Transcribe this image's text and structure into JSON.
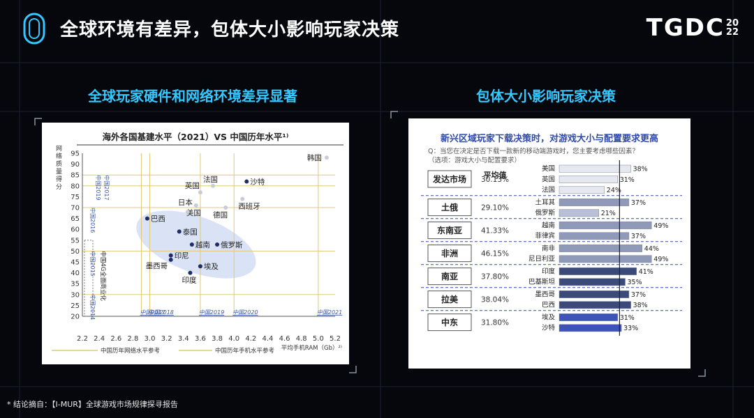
{
  "slide": {
    "title": "全球环境有差异，包体大小影响玩家决策",
    "brand": "TGDC",
    "brand_year_top": "20",
    "brand_year_bottom": "22",
    "footnote": "* 结论摘自：【I-MUR】全球游戏市场规律探寻报告"
  },
  "sections": {
    "left_heading": "全球玩家硬件和网络环境差异显著",
    "right_heading": "包体大小影响玩家决策"
  },
  "colors": {
    "background": "#05070d",
    "accent_cyan": "#33c8ff",
    "grid_gold": "#e0c878",
    "bar_light": "#e6e8ef",
    "bar_mid": "#8f99b8",
    "bar_dark": "#3b4a78",
    "bar_blue": "#3c53b8"
  },
  "chart_data": [
    {
      "type": "scatter",
      "title": "海外各国基建水平（2021）VS 中国历年水平¹⁾",
      "ylabel": "网络质量得分",
      "xlabel": "平均手机RAM（Gb）²⁾",
      "xlim": [
        2.2,
        5.2
      ],
      "ylim": [
        20,
        95
      ],
      "x_ticks": [
        "2.2",
        "2.4",
        "2.6",
        "2.8",
        "3.0",
        "3.2",
        "3.4",
        "3.6",
        "3.8",
        "4.0",
        "4.2",
        "4.4",
        "4.6",
        "4.8",
        "5.0",
        "5.2"
      ],
      "y_ticks": [
        "20",
        "25",
        "30",
        "35",
        "40",
        "45",
        "50",
        "55",
        "60",
        "65",
        "70",
        "75",
        "80",
        "85",
        "90",
        "95"
      ],
      "points": [
        {
          "label": "韩国",
          "x": 5.1,
          "y": 93
        },
        {
          "label": "沙特",
          "x": 4.15,
          "y": 82
        },
        {
          "label": "法国",
          "x": 3.75,
          "y": 80
        },
        {
          "label": "英国",
          "x": 3.6,
          "y": 77
        },
        {
          "label": "西班牙",
          "x": 4.1,
          "y": 74
        },
        {
          "label": "美国",
          "x": 3.55,
          "y": 71
        },
        {
          "label": "德国",
          "x": 3.9,
          "y": 70
        },
        {
          "label": "日本",
          "x": 3.45,
          "y": 68
        },
        {
          "label": "巴西",
          "x": 2.97,
          "y": 65
        },
        {
          "label": "泰国",
          "x": 3.35,
          "y": 59
        },
        {
          "label": "越南",
          "x": 3.5,
          "y": 53
        },
        {
          "label": "俄罗斯",
          "x": 3.8,
          "y": 53
        },
        {
          "label": "印尼",
          "x": 3.25,
          "y": 48
        },
        {
          "label": "墨西哥",
          "x": 3.25,
          "y": 46
        },
        {
          "label": "埃及",
          "x": 3.6,
          "y": 43
        },
        {
          "label": "印度",
          "x": 3.48,
          "y": 40
        }
      ],
      "vertical_refs": [
        {
          "x": 2.9,
          "label": "中国2017"
        },
        {
          "x": 3.0,
          "label": "中国2018"
        },
        {
          "x": 3.6,
          "label": "中国2019"
        },
        {
          "x": 4.0,
          "label": "中国2020"
        },
        {
          "x": 5.0,
          "label": "中国2021"
        }
      ],
      "horizontal_refs": [
        {
          "y": 85,
          "label": "中国2019"
        },
        {
          "y": 80,
          "label": "中国2017"
        },
        {
          "y": 70,
          "label": "中国2016"
        },
        {
          "y": 50,
          "label": "中国2015"
        },
        {
          "y": 30,
          "label": "中国2014"
        }
      ],
      "annotation": "中国4G全面商业化",
      "legend": [
        "中国历年网络水平参考",
        "中国历年手机水平参考"
      ],
      "legend_position": "bottom"
    },
    {
      "type": "bar",
      "title": "新兴区域玩家下载决策时，对游戏大小与配置要求更高",
      "question_line1": "Q：当您在决定是否下载一款新的移动端游戏时，您主要考虑哪些因素？",
      "question_line2": "（选项：游戏大小与配置要求）",
      "avg_header": "平均值",
      "xlim": [
        0,
        60
      ],
      "reference_value": 32,
      "groups": [
        {
          "region": "发达市场",
          "avg": "30.13%",
          "items": [
            {
              "country": "美国",
              "value": 38,
              "label": "38%"
            },
            {
              "country": "英国",
              "value": 31,
              "label": "31%"
            },
            {
              "country": "法国",
              "value": 24,
              "label": "24%"
            }
          ]
        },
        {
          "region": "土俄",
          "avg": "29.10%",
          "items": [
            {
              "country": "土耳其",
              "value": 37,
              "label": "37%"
            },
            {
              "country": "俄罗斯",
              "value": 21,
              "label": "21%"
            }
          ]
        },
        {
          "region": "东南亚",
          "avg": "41.33%",
          "items": [
            {
              "country": "越南",
              "value": 49,
              "label": "49%"
            },
            {
              "country": "菲律宾",
              "value": 37,
              "label": "37%"
            }
          ]
        },
        {
          "region": "非洲",
          "avg": "46.15%",
          "items": [
            {
              "country": "南非",
              "value": 44,
              "label": "44%"
            },
            {
              "country": "尼日利亚",
              "value": 49,
              "label": "49%"
            }
          ]
        },
        {
          "region": "南亚",
          "avg": "37.80%",
          "items": [
            {
              "country": "印度",
              "value": 41,
              "label": "41%"
            },
            {
              "country": "巴基斯坦",
              "value": 35,
              "label": "35%"
            }
          ]
        },
        {
          "region": "拉美",
          "avg": "38.04%",
          "items": [
            {
              "country": "墨西哥",
              "value": 37,
              "label": "37%"
            },
            {
              "country": "巴西",
              "value": 38,
              "label": "38%"
            }
          ]
        },
        {
          "region": "中东",
          "avg": "31.80%",
          "items": [
            {
              "country": "埃及",
              "value": 31,
              "label": "31%"
            },
            {
              "country": "沙特",
              "value": 33,
              "label": "33%"
            }
          ]
        }
      ]
    }
  ]
}
